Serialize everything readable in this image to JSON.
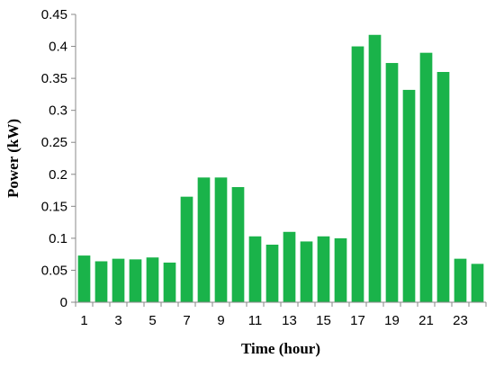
{
  "chart_data": {
    "type": "bar",
    "xlabel": "Time (hour)",
    "ylabel": "Power (kW)",
    "ylim": [
      0,
      0.45
    ],
    "yticks": [
      "0",
      "0.05",
      "0.1",
      "0.15",
      "0.2",
      "0.25",
      "0.3",
      "0.35",
      "0.4",
      "0.45"
    ],
    "categories": [
      "1",
      "2",
      "3",
      "4",
      "5",
      "6",
      "7",
      "8",
      "9",
      "10",
      "11",
      "12",
      "13",
      "14",
      "15",
      "16",
      "17",
      "18",
      "19",
      "20",
      "21",
      "22",
      "23",
      "24"
    ],
    "xtick_labels": [
      "1",
      "3",
      "5",
      "7",
      "9",
      "11",
      "13",
      "15",
      "17",
      "19",
      "21",
      "23"
    ],
    "values": [
      0.073,
      0.064,
      0.068,
      0.067,
      0.07,
      0.062,
      0.165,
      0.195,
      0.195,
      0.18,
      0.103,
      0.09,
      0.11,
      0.095,
      0.103,
      0.1,
      0.4,
      0.418,
      0.374,
      0.332,
      0.39,
      0.36,
      0.068,
      0.06
    ],
    "bar_color": "#1ab34a",
    "grid": false,
    "legend": "none"
  }
}
